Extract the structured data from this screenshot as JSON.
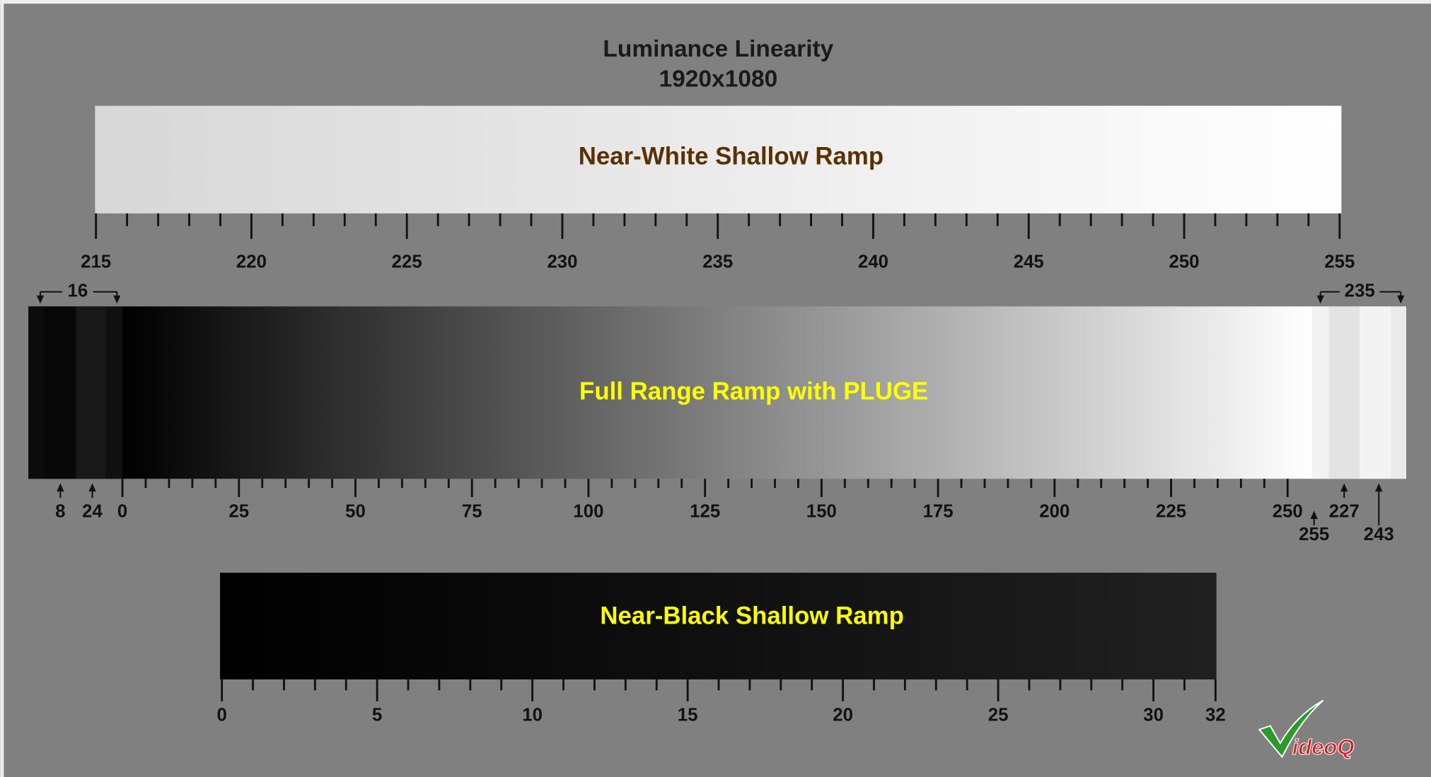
{
  "title": [
    "Luminance Linearity",
    "1920x1080"
  ],
  "near_white": {
    "label": "Near-White Shallow Ramp",
    "tick_labels": [
      215,
      220,
      225,
      230,
      235,
      240,
      245,
      250,
      255
    ]
  },
  "full_range": {
    "label": "Full Range Ramp with PLUGE",
    "tick_labels": [
      0,
      25,
      50,
      75,
      100,
      125,
      150,
      175,
      200,
      225,
      250
    ],
    "pluge_black": {
      "top": "16",
      "marks": [
        "8",
        "24"
      ]
    },
    "pluge_white": {
      "top": "235",
      "marks": [
        "255",
        "227",
        "243"
      ]
    }
  },
  "near_black": {
    "label": "Near-Black Shallow Ramp",
    "tick_labels": [
      0,
      5,
      10,
      15,
      20,
      25,
      30,
      32
    ]
  },
  "logo": "ideoQ"
}
